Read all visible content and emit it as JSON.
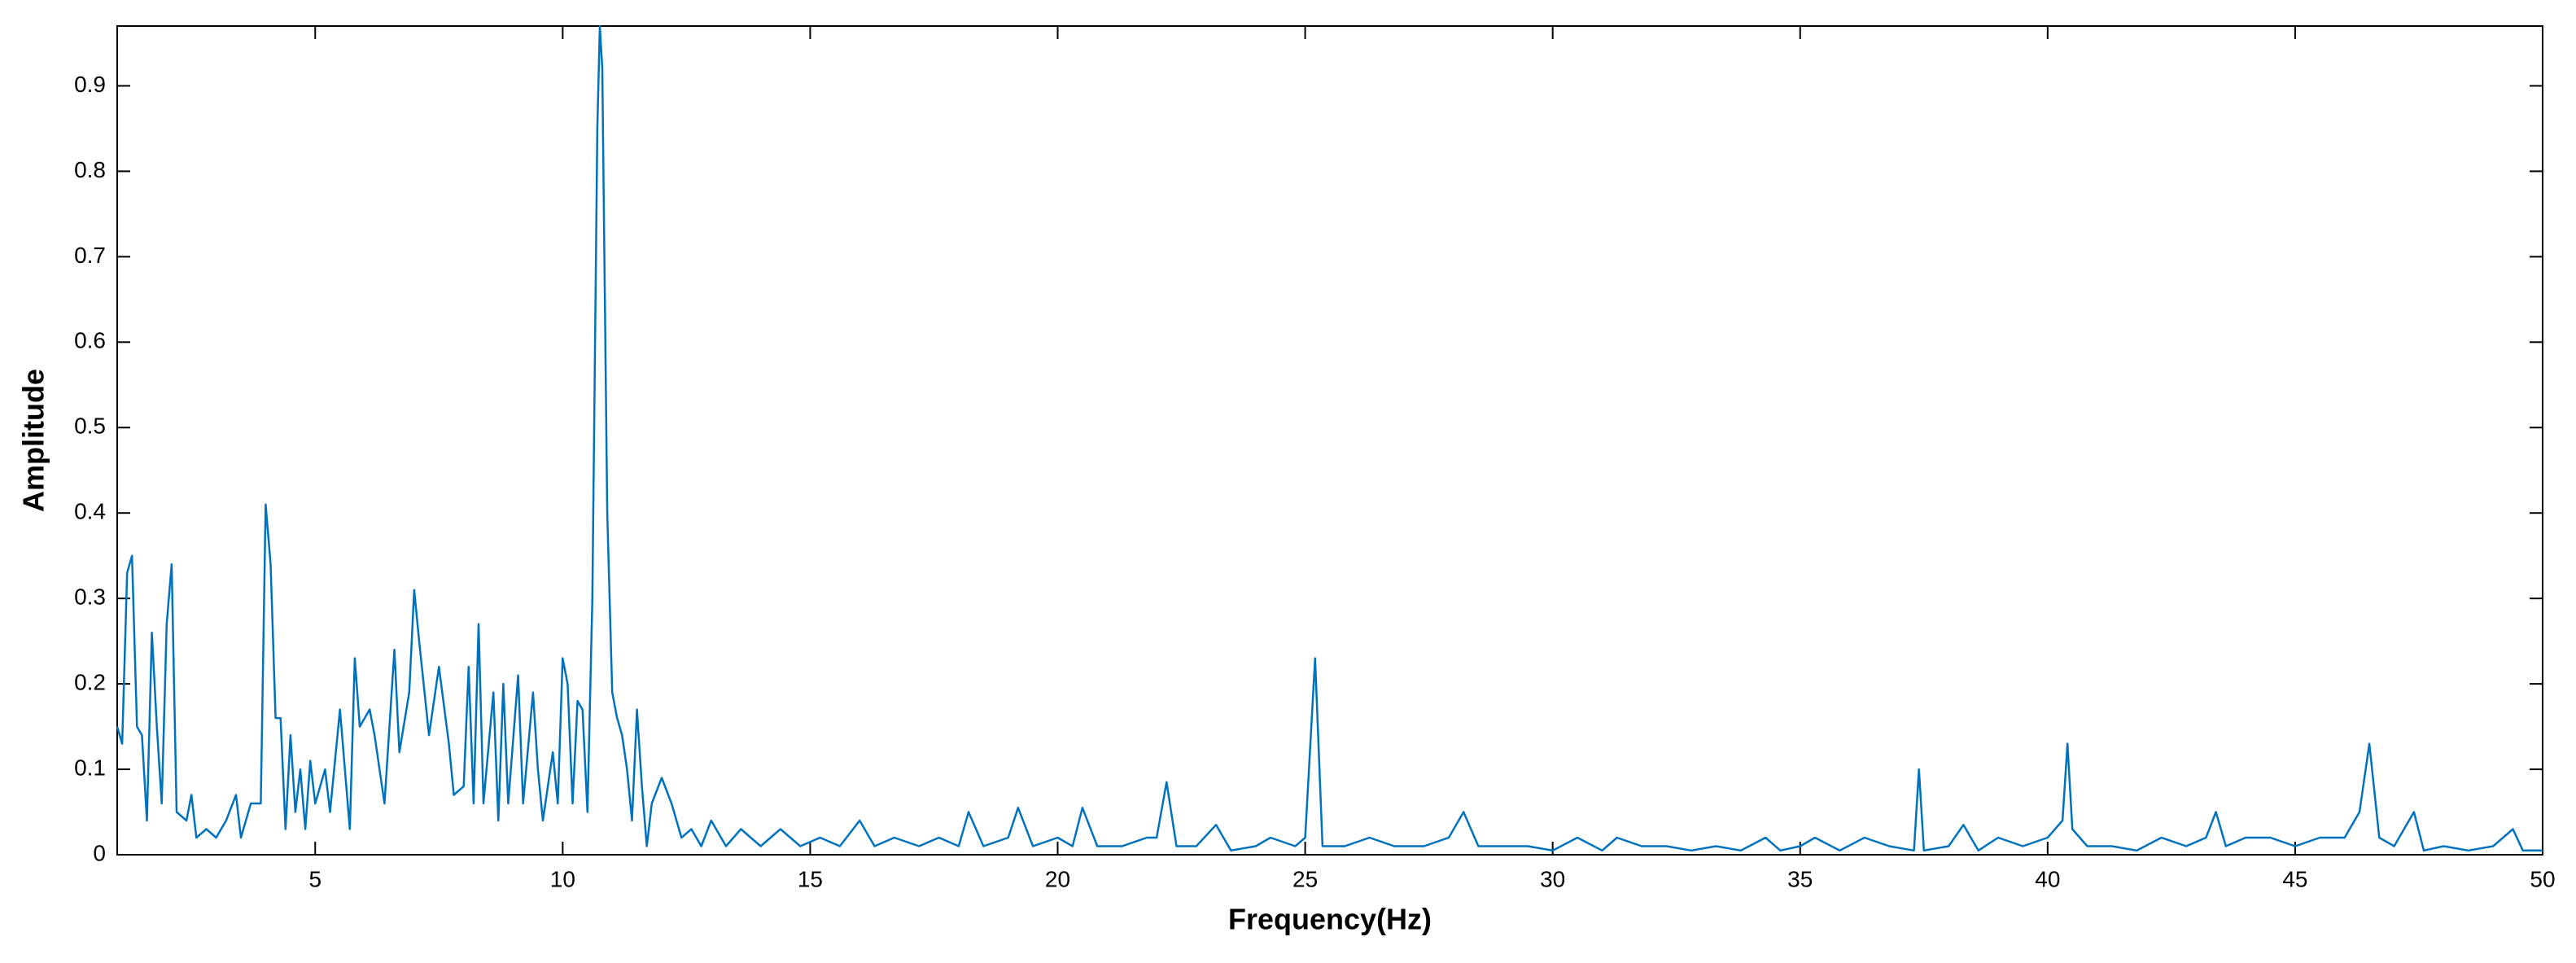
{
  "chart_data": {
    "type": "line",
    "x_label": "Frequency(Hz)",
    "y_label": "Amplitude",
    "x": [
      1.0,
      1.1,
      1.2,
      1.3,
      1.4,
      1.5,
      1.6,
      1.7,
      1.8,
      1.9,
      2.0,
      2.1,
      2.2,
      2.4,
      2.5,
      2.6,
      2.8,
      3.0,
      3.2,
      3.4,
      3.5,
      3.7,
      3.9,
      4.0,
      4.1,
      4.2,
      4.3,
      4.4,
      4.5,
      4.6,
      4.7,
      4.8,
      4.9,
      5.0,
      5.2,
      5.3,
      5.5,
      5.7,
      5.8,
      5.9,
      6.1,
      6.2,
      6.4,
      6.6,
      6.7,
      6.9,
      7.0,
      7.1,
      7.3,
      7.5,
      7.7,
      7.8,
      8.0,
      8.1,
      8.2,
      8.3,
      8.4,
      8.6,
      8.7,
      8.8,
      8.9,
      9.1,
      9.2,
      9.4,
      9.5,
      9.6,
      9.8,
      9.9,
      10.0,
      10.1,
      10.2,
      10.3,
      10.4,
      10.5,
      10.6,
      10.7,
      10.75,
      10.8,
      10.9,
      11.0,
      11.1,
      11.2,
      11.3,
      11.4,
      11.5,
      11.6,
      11.7,
      11.8,
      12.0,
      12.2,
      12.4,
      12.6,
      12.8,
      13.0,
      13.3,
      13.6,
      14.0,
      14.4,
      14.8,
      15.2,
      15.6,
      16.0,
      16.3,
      16.7,
      17.2,
      17.6,
      18.0,
      18.2,
      18.5,
      19.0,
      19.2,
      19.5,
      20.0,
      20.3,
      20.5,
      20.8,
      21.3,
      21.8,
      22.0,
      22.2,
      22.4,
      22.8,
      23.2,
      23.5,
      24.0,
      24.3,
      24.8,
      25.0,
      25.2,
      25.35,
      25.8,
      26.3,
      26.8,
      27.4,
      27.9,
      28.2,
      28.5,
      29.0,
      29.5,
      30.0,
      30.5,
      31.0,
      31.3,
      31.8,
      32.3,
      32.8,
      33.3,
      33.8,
      34.3,
      34.6,
      35.0,
      35.3,
      35.8,
      36.3,
      36.8,
      37.3,
      37.4,
      37.5,
      38.0,
      38.3,
      38.6,
      39.0,
      39.5,
      40.0,
      40.3,
      40.4,
      40.5,
      40.8,
      41.3,
      41.8,
      42.3,
      42.8,
      43.2,
      43.4,
      43.6,
      44.0,
      44.5,
      45.0,
      45.5,
      46.0,
      46.3,
      46.5,
      46.7,
      47.0,
      47.4,
      47.6,
      48.0,
      48.5,
      49.0,
      49.4,
      49.6,
      50.0
    ],
    "series": [
      {
        "name": "Amplitude",
        "color": "#0072bd",
        "values": [
          0.15,
          0.13,
          0.33,
          0.35,
          0.15,
          0.14,
          0.04,
          0.26,
          0.15,
          0.06,
          0.27,
          0.34,
          0.05,
          0.04,
          0.07,
          0.02,
          0.03,
          0.02,
          0.04,
          0.07,
          0.02,
          0.06,
          0.06,
          0.41,
          0.34,
          0.16,
          0.16,
          0.03,
          0.14,
          0.05,
          0.1,
          0.03,
          0.11,
          0.06,
          0.1,
          0.05,
          0.17,
          0.03,
          0.23,
          0.15,
          0.17,
          0.14,
          0.06,
          0.24,
          0.12,
          0.19,
          0.31,
          0.25,
          0.14,
          0.22,
          0.13,
          0.07,
          0.08,
          0.22,
          0.06,
          0.27,
          0.06,
          0.19,
          0.04,
          0.2,
          0.06,
          0.21,
          0.06,
          0.19,
          0.1,
          0.04,
          0.12,
          0.06,
          0.23,
          0.2,
          0.06,
          0.18,
          0.17,
          0.05,
          0.3,
          0.85,
          0.97,
          0.92,
          0.4,
          0.19,
          0.16,
          0.14,
          0.1,
          0.04,
          0.17,
          0.08,
          0.01,
          0.06,
          0.09,
          0.06,
          0.02,
          0.03,
          0.01,
          0.04,
          0.01,
          0.03,
          0.01,
          0.03,
          0.01,
          0.02,
          0.01,
          0.04,
          0.01,
          0.02,
          0.01,
          0.02,
          0.01,
          0.05,
          0.01,
          0.02,
          0.055,
          0.01,
          0.02,
          0.01,
          0.055,
          0.01,
          0.01,
          0.02,
          0.02,
          0.085,
          0.01,
          0.01,
          0.035,
          0.005,
          0.01,
          0.02,
          0.01,
          0.02,
          0.23,
          0.01,
          0.01,
          0.02,
          0.01,
          0.01,
          0.02,
          0.05,
          0.01,
          0.01,
          0.01,
          0.005,
          0.02,
          0.005,
          0.02,
          0.01,
          0.01,
          0.005,
          0.01,
          0.005,
          0.02,
          0.005,
          0.01,
          0.02,
          0.005,
          0.02,
          0.01,
          0.005,
          0.1,
          0.005,
          0.01,
          0.035,
          0.005,
          0.02,
          0.01,
          0.02,
          0.04,
          0.13,
          0.03,
          0.01,
          0.01,
          0.005,
          0.02,
          0.01,
          0.02,
          0.05,
          0.01,
          0.02,
          0.02,
          0.01,
          0.02,
          0.02,
          0.05,
          0.13,
          0.02,
          0.01,
          0.05,
          0.005,
          0.01,
          0.005,
          0.01,
          0.03,
          0.005,
          0.005
        ]
      }
    ],
    "xlim": [
      1,
      50
    ],
    "ylim": [
      0,
      0.97
    ],
    "xticks": [
      5,
      10,
      15,
      20,
      25,
      30,
      35,
      40,
      45,
      50
    ],
    "yticks": [
      0,
      0.1,
      0.2,
      0.3,
      0.4,
      0.5,
      0.6,
      0.7,
      0.8,
      0.9
    ],
    "grid": false
  }
}
